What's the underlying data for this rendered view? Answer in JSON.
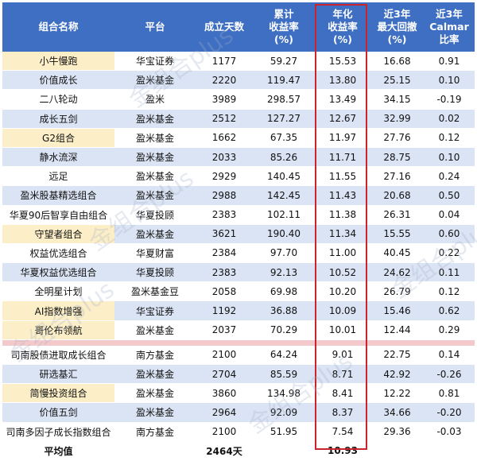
{
  "headers": [
    "组合名称",
    "平台",
    "成立天数",
    "累计\n收益率\n(%)",
    "年化\n收益率\n(%)",
    "近3年\n最大回撤\n(%)",
    "近3年\nCalmar\n比率"
  ],
  "rows_top": [
    {
      "name": "小牛慢跑",
      "platform": "华宝证券",
      "days": "1177",
      "cum": "59.27",
      "ann": "15.53",
      "dd": "16.68",
      "calmar": "0.91",
      "hl": true
    },
    {
      "name": "价值成长",
      "platform": "盈米基金",
      "days": "2220",
      "cum": "119.47",
      "ann": "13.80",
      "dd": "25.15",
      "calmar": "0.10",
      "hl": false
    },
    {
      "name": "二八轮动",
      "platform": "盈米",
      "days": "3989",
      "cum": "298.57",
      "ann": "13.49",
      "dd": "34.15",
      "calmar": "-0.19",
      "hl": false
    },
    {
      "name": "成长五剑",
      "platform": "盈米基金",
      "days": "2512",
      "cum": "127.27",
      "ann": "12.67",
      "dd": "32.99",
      "calmar": "0.02",
      "hl": false
    },
    {
      "name": "G2组合",
      "platform": "盈米基金",
      "days": "1662",
      "cum": "67.35",
      "ann": "11.97",
      "dd": "27.76",
      "calmar": "0.12",
      "hl": true
    },
    {
      "name": "静水流深",
      "platform": "盈米基金",
      "days": "2033",
      "cum": "85.26",
      "ann": "11.71",
      "dd": "28.75",
      "calmar": "0.10",
      "hl": false
    },
    {
      "name": "远足",
      "platform": "盈米基金",
      "days": "2929",
      "cum": "140.45",
      "ann": "11.55",
      "dd": "27.16",
      "calmar": "0.24",
      "hl": false
    },
    {
      "name": "盈米股基精选组合",
      "platform": "盈米基金",
      "days": "2988",
      "cum": "142.45",
      "ann": "11.43",
      "dd": "20.68",
      "calmar": "0.50",
      "hl": false
    },
    {
      "name": "华夏90后智享自由组合",
      "platform": "华夏投顾",
      "days": "2383",
      "cum": "102.11",
      "ann": "11.38",
      "dd": "26.31",
      "calmar": "0.04",
      "hl": false
    },
    {
      "name": "守望者组合",
      "platform": "盈米基金",
      "days": "3621",
      "cum": "190.40",
      "ann": "11.34",
      "dd": "15.55",
      "calmar": "0.60",
      "hl": true
    },
    {
      "name": "权益优选组合",
      "platform": "华夏财富",
      "days": "2384",
      "cum": "97.70",
      "ann": "11.00",
      "dd": "40.45",
      "calmar": "0.22",
      "hl": false
    },
    {
      "name": "华夏权益优选组合",
      "platform": "华夏投顾",
      "days": "2383",
      "cum": "92.13",
      "ann": "10.52",
      "dd": "24.62",
      "calmar": "0.11",
      "hl": false
    },
    {
      "name": "全明星计划",
      "platform": "盈米基金豆",
      "days": "2058",
      "cum": "69.98",
      "ann": "10.20",
      "dd": "26.79",
      "calmar": "0.12",
      "hl": false
    },
    {
      "name": "AI指数增强",
      "platform": "华宝证券",
      "days": "1192",
      "cum": "36.88",
      "ann": "10.09",
      "dd": "15.46",
      "calmar": "0.62",
      "hl": true
    },
    {
      "name": "哥伦布领航",
      "platform": "盈米基金",
      "days": "2037",
      "cum": "70.29",
      "ann": "10.01",
      "dd": "12.44",
      "calmar": "0.29",
      "hl": true
    }
  ],
  "rows_bottom": [
    {
      "name": "司南股债进取成长组合",
      "platform": "南方基金",
      "days": "2100",
      "cum": "64.24",
      "ann": "9.01",
      "dd": "22.75",
      "calmar": "0.14",
      "hl": false
    },
    {
      "name": "研选基汇",
      "platform": "盈米基金",
      "days": "2704",
      "cum": "85.59",
      "ann": "8.71",
      "dd": "42.92",
      "calmar": "-0.26",
      "hl": false
    },
    {
      "name": "简慢投资组合",
      "platform": "盈米基金",
      "days": "3860",
      "cum": "134.98",
      "ann": "8.41",
      "dd": "12.22",
      "calmar": "0.81",
      "hl": true
    },
    {
      "name": "价值五剑",
      "platform": "盈米基金",
      "days": "2964",
      "cum": "92.09",
      "ann": "8.37",
      "dd": "34.66",
      "calmar": "-0.20",
      "hl": false
    },
    {
      "name": "司南多因子成长指数组合",
      "platform": "南方基金",
      "days": "2100",
      "cum": "51.95",
      "ann": "7.54",
      "dd": "29.36",
      "calmar": "-0.03",
      "hl": false
    }
  ],
  "average": {
    "label": "平均值",
    "days": "2464天",
    "ann": "10.93"
  },
  "watermark": "金组合plus",
  "colors": {
    "header_bg": "#3f6fc2",
    "row_alt": "#dbe4f4",
    "highlight": "#fcefc8",
    "separator": "#f4c9cb",
    "box": "#c8262c"
  }
}
